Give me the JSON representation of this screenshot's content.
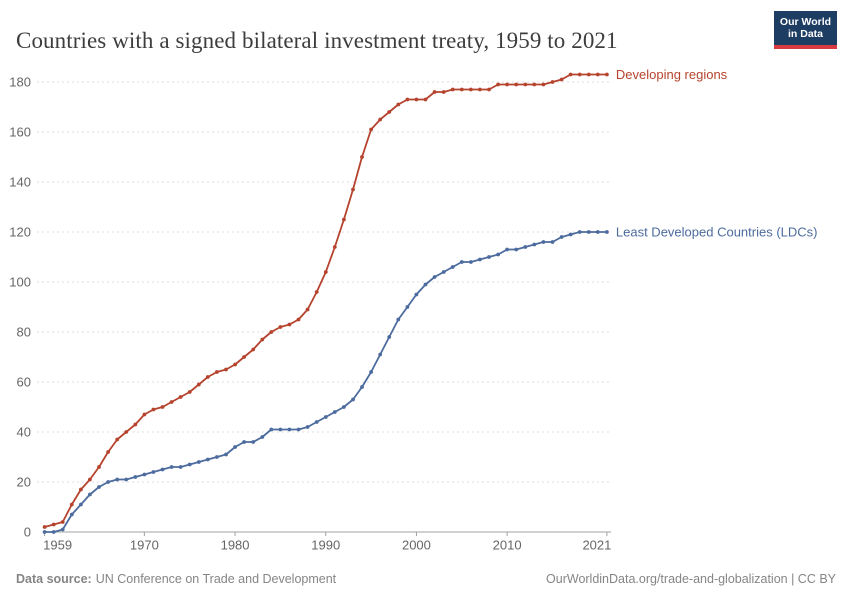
{
  "header": {
    "title": "Countries with a signed bilateral investment treaty, 1959 to 2021",
    "logo_line1": "Our World",
    "logo_line2": "in Data"
  },
  "footer": {
    "source_label": "Data source:",
    "source_text": "UN Conference on Trade and Development",
    "link_text": "OurWorldinData.org/trade-and-globalization | CC BY"
  },
  "colors": {
    "title_text": "#3d3d3d",
    "tick_text": "#666666",
    "grid": "#dddddd",
    "axis": "#a1a1a1",
    "footer_text": "#858585",
    "logo_bg": "#1d3d63",
    "logo_bar": "#d93a3f",
    "developing_regions": "#b5432d",
    "ldcs": "#4c6b9e"
  },
  "chart_data": {
    "type": "line",
    "title": "Countries with a signed bilateral investment treaty, 1959 to 2021",
    "xlabel": "",
    "ylabel": "",
    "xlim": [
      1959,
      2021
    ],
    "ylim": [
      0,
      180
    ],
    "grid": "horizontal-dashed",
    "legend_position": "line-end-labels",
    "xticks": [
      1959,
      1970,
      1980,
      1990,
      2000,
      2010,
      2021
    ],
    "yticks": [
      0,
      20,
      40,
      60,
      80,
      100,
      120,
      140,
      160,
      180
    ],
    "x": [
      1959,
      1960,
      1961,
      1962,
      1963,
      1964,
      1965,
      1966,
      1967,
      1968,
      1969,
      1970,
      1971,
      1972,
      1973,
      1974,
      1975,
      1976,
      1977,
      1978,
      1979,
      1980,
      1981,
      1982,
      1983,
      1984,
      1985,
      1986,
      1987,
      1988,
      1989,
      1990,
      1991,
      1992,
      1993,
      1994,
      1995,
      1996,
      1997,
      1998,
      1999,
      2000,
      2001,
      2002,
      2003,
      2004,
      2005,
      2006,
      2007,
      2008,
      2009,
      2010,
      2011,
      2012,
      2013,
      2014,
      2015,
      2016,
      2017,
      2018,
      2019,
      2020,
      2021
    ],
    "series": [
      {
        "name": "Developing regions",
        "color": "#b5432d",
        "values": [
          2,
          3,
          4,
          11,
          17,
          21,
          26,
          32,
          37,
          40,
          43,
          47,
          49,
          50,
          52,
          54,
          56,
          59,
          62,
          64,
          65,
          67,
          70,
          73,
          77,
          80,
          82,
          83,
          85,
          89,
          96,
          104,
          114,
          125,
          137,
          150,
          161,
          165,
          168,
          171,
          173,
          173,
          173,
          176,
          176,
          177,
          177,
          177,
          177,
          177,
          179,
          179,
          179,
          179,
          179,
          179,
          180,
          181,
          183,
          183,
          183,
          183,
          183
        ]
      },
      {
        "name": "Least Developed Countries (LDCs)",
        "color": "#4c6b9e",
        "values": [
          0,
          0,
          1,
          7,
          11,
          15,
          18,
          20,
          21,
          21,
          22,
          23,
          24,
          25,
          26,
          26,
          27,
          28,
          29,
          30,
          31,
          34,
          36,
          36,
          38,
          41,
          41,
          41,
          41,
          42,
          44,
          46,
          48,
          50,
          53,
          58,
          64,
          71,
          78,
          85,
          90,
          95,
          99,
          102,
          104,
          106,
          108,
          108,
          109,
          110,
          111,
          113,
          113,
          114,
          115,
          116,
          116,
          118,
          119,
          120,
          120,
          120,
          120
        ]
      }
    ]
  }
}
